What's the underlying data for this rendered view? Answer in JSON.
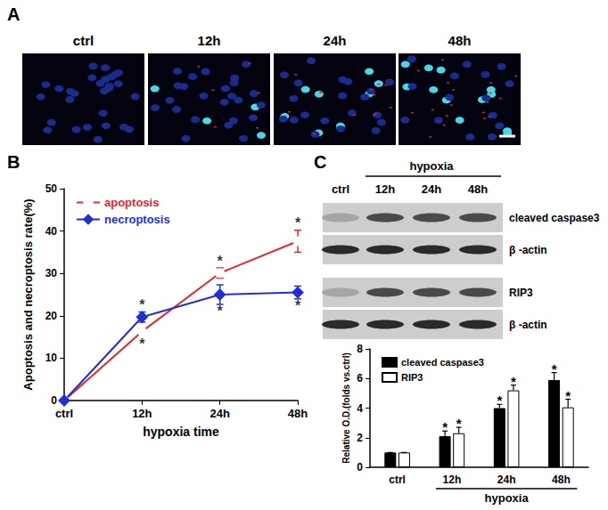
{
  "panel_a": {
    "label": "A",
    "images": [
      "ctrl",
      "12h",
      "24h",
      "48h"
    ]
  },
  "chart_data": [
    {
      "type": "line",
      "title": "B",
      "xlabel": "hypoxia time",
      "ylabel": "Apoptosis and necroptosis rate(%)",
      "categories": [
        "ctrl",
        "12h",
        "24h",
        "48h"
      ],
      "series": [
        {
          "name": "apoptosis",
          "color": "#e8252b",
          "marker": "circle_open",
          "values": [
            0,
            16.3,
            30.1,
            37.6
          ],
          "errors": [
            0,
            0.6,
            1.2,
            2.6
          ]
        },
        {
          "name": "necroptosis",
          "color": "#1f2fd0",
          "marker": "diamond",
          "values": [
            0,
            19.7,
            25,
            25.5
          ],
          "errors": [
            0,
            1.2,
            2.3,
            1.5
          ]
        }
      ],
      "annotations": [
        {
          "text": "*",
          "x": "12h",
          "y": 22.5
        },
        {
          "text": "*",
          "x": "12h",
          "y": 13.3
        },
        {
          "text": "*",
          "x": "24h",
          "y": 32.8
        },
        {
          "text": "*",
          "x": "24h",
          "y": 21.2
        },
        {
          "text": "*",
          "x": "48h",
          "y": 42.0
        },
        {
          "text": "*",
          "x": "48h",
          "y": 22.3
        }
      ],
      "ylim": [
        0,
        50
      ],
      "yticks": [
        0,
        10,
        20,
        30,
        40,
        50
      ],
      "legend": "upper left"
    },
    {
      "type": "bar",
      "xlabel": "hypoxia",
      "ylabel": "Relative O.D.(folds vs.ctrl)",
      "categories": [
        "ctrl",
        "12h",
        "24h",
        "48h"
      ],
      "series": [
        {
          "name": "cleaved caspase3",
          "color": "#000000",
          "values": [
            1,
            2.1,
            4.0,
            5.9
          ],
          "errors": [
            0,
            0.35,
            0.25,
            0.5
          ],
          "significance": [
            null,
            "*",
            "*",
            "*"
          ]
        },
        {
          "name": "RIP3",
          "color": "#ffffff",
          "values": [
            1,
            2.3,
            5.2,
            4.05
          ],
          "errors": [
            0,
            0.4,
            0.35,
            0.55
          ],
          "significance": [
            null,
            "*",
            "*",
            "*"
          ]
        }
      ],
      "ylim": [
        0,
        8
      ],
      "yticks": [
        0,
        2,
        4,
        6,
        8
      ],
      "legend": "upper left"
    }
  ],
  "panel_c_blot": {
    "label": "C",
    "header": "hypoxia",
    "lanes": [
      "ctrl",
      "12h",
      "24h",
      "48h"
    ],
    "rows": [
      "cleaved caspase3",
      "β -actin",
      "RIP3",
      "β -actin"
    ]
  }
}
